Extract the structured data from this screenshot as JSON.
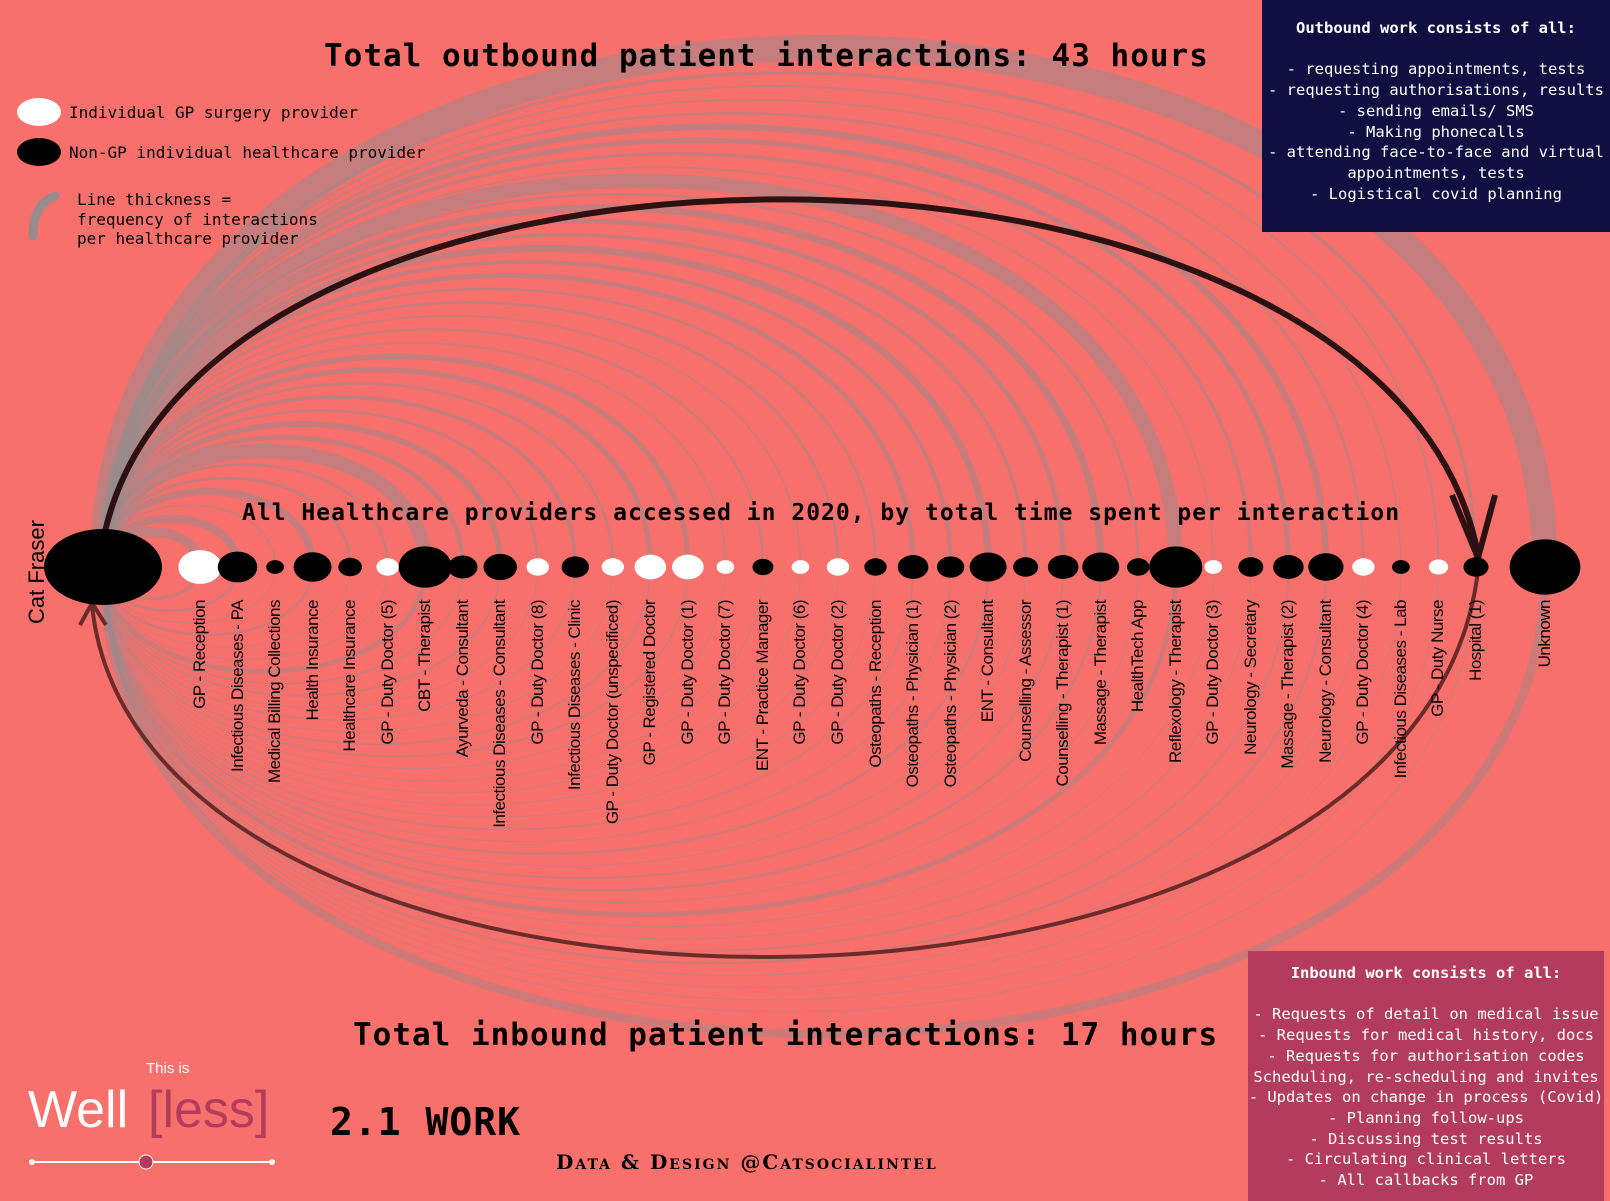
{
  "titles": {
    "outbound": "Total outbound patient interactions: 43 hours",
    "inbound": "Total inbound patient interactions: 17 hours",
    "center": "All Healthcare providers accessed in 2020, by total time spent per interaction"
  },
  "legend": {
    "gp": "Individual GP surgery provider",
    "non_gp": "Non-GP individual healthcare provider",
    "line_lines": [
      "Line thickness =",
      "frequency of interactions",
      "per healthcare provider"
    ]
  },
  "outbound_box": {
    "title": "Outbound work consists of all:",
    "items": [
      "- requesting appointments, tests",
      "- requesting authorisations, results",
      "- sending emails/ SMS",
      "- Making phonecalls",
      "- attending face-to-face and virtual",
      "appointments, tests",
      "- Logistical covid planning"
    ]
  },
  "inbound_box": {
    "title": "Inbound work consists of all:",
    "items": [
      "- Requests of detail on medical issue",
      "- Requests for medical history, docs",
      "- Requests for authorisation codes",
      "Scheduling, re-scheduling and invites",
      "- Updates on change in process (Covid)",
      "- Planning follow-ups",
      "- Discussing test results",
      "- Circulating clinical letters",
      "- All callbacks from GP"
    ]
  },
  "person": "Cat Fraser",
  "colors": {
    "background": "#f8706b",
    "gp": "#ffffff",
    "non_gp": "#000000",
    "outbound_box": "#0f0f42",
    "inbound_box": "#b33c5e",
    "arc": "#9a8a8d"
  },
  "providers": [
    {
      "name": "GP - Reception",
      "type": "gp",
      "size": 3
    },
    {
      "name": "Infectious Diseases - PA",
      "type": "non_gp",
      "size": 2.5
    },
    {
      "name": "Medical Billing Collections",
      "type": "non_gp",
      "size": 0.5
    },
    {
      "name": "Health Insurance",
      "type": "non_gp",
      "size": 2.3
    },
    {
      "name": "Healthcare Insurance",
      "type": "non_gp",
      "size": 0.9
    },
    {
      "name": "GP - Duty Doctor (5)",
      "type": "gp",
      "size": 0.8
    },
    {
      "name": "CBT - Therapist",
      "type": "non_gp",
      "size": 4.5
    },
    {
      "name": "Ayurveda - Consultant",
      "type": "non_gp",
      "size": 1.4
    },
    {
      "name": "Infectious Diseases - Consultant",
      "type": "non_gp",
      "size": 1.8
    },
    {
      "name": "GP - Duty Doctor (8)",
      "type": "gp",
      "size": 0.8
    },
    {
      "name": "Infectious Diseases - Clinic",
      "type": "non_gp",
      "size": 1.2
    },
    {
      "name": "GP - Duty Doctor (unspecificed)",
      "type": "gp",
      "size": 0.8
    },
    {
      "name": "GP - Registered Doctor",
      "type": "gp",
      "size": 1.6
    },
    {
      "name": "GP - Duty Doctor (1)",
      "type": "gp",
      "size": 1.6
    },
    {
      "name": "GP - Duty Doctor (7)",
      "type": "gp",
      "size": 0.5
    },
    {
      "name": "ENT - Practice Manager",
      "type": "non_gp",
      "size": 0.7
    },
    {
      "name": "GP - Duty Doctor (6)",
      "type": "gp",
      "size": 0.5
    },
    {
      "name": "GP - Duty Doctor (2)",
      "type": "gp",
      "size": 0.8
    },
    {
      "name": "Osteopaths - Reception",
      "type": "non_gp",
      "size": 0.8
    },
    {
      "name": "Osteopaths - Physician (1)",
      "type": "non_gp",
      "size": 1.5
    },
    {
      "name": "Osteopaths - Physician (2)",
      "type": "non_gp",
      "size": 1.2
    },
    {
      "name": "ENT - Consultant",
      "type": "non_gp",
      "size": 2.2
    },
    {
      "name": "Counselling - Assessor",
      "type": "non_gp",
      "size": 1.0
    },
    {
      "name": "Counselling - Therapist (1)",
      "type": "non_gp",
      "size": 1.5
    },
    {
      "name": "Massage - Therapist",
      "type": "non_gp",
      "size": 2.2
    },
    {
      "name": "HealthTech App",
      "type": "non_gp",
      "size": 0.8
    },
    {
      "name": "Reflexology - Therapist",
      "type": "non_gp",
      "size": 4.5
    },
    {
      "name": "GP - Duty Doctor (3)",
      "type": "gp",
      "size": 0.5
    },
    {
      "name": "Neurology - Secretary",
      "type": "non_gp",
      "size": 1.0
    },
    {
      "name": "Massage - Therapist (2)",
      "type": "non_gp",
      "size": 1.5
    },
    {
      "name": "Neurology - Consultant",
      "type": "non_gp",
      "size": 2.0
    },
    {
      "name": "GP - Duty Doctor (4)",
      "type": "gp",
      "size": 0.8
    },
    {
      "name": "Infectious Diseases - Lab",
      "type": "non_gp",
      "size": 0.5
    },
    {
      "name": "GP - Duty Nurse",
      "type": "gp",
      "size": 0.6
    },
    {
      "name": "Hospital (1)",
      "type": "non_gp",
      "size": 1.0
    },
    {
      "name": "Unknown",
      "type": "non_gp",
      "size": 8.0
    }
  ],
  "footer": {
    "brand_intro": "This is",
    "brand_well": "Well",
    "brand_less": "[less]",
    "section": "2.1 WORK",
    "credit": "Data & Design @Catsocialintel"
  }
}
